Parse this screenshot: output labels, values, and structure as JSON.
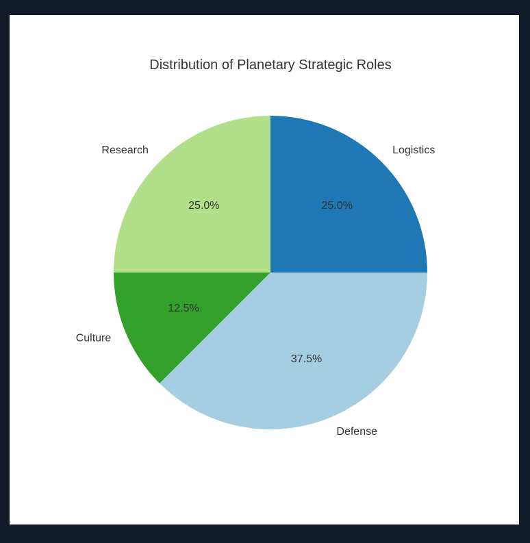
{
  "chart_data": {
    "type": "pie",
    "title": "Distribution of Planetary Strategic Roles",
    "start_angle_deg": 90,
    "direction": "counterclockwise",
    "slices": [
      {
        "label": "Research",
        "value": 25.0,
        "pct_label": "25.0%",
        "color": "#b2df8a"
      },
      {
        "label": "Culture",
        "value": 12.5,
        "pct_label": "12.5%",
        "color": "#33a02c"
      },
      {
        "label": "Defense",
        "value": 37.5,
        "pct_label": "37.5%",
        "color": "#a6cee3"
      },
      {
        "label": "Logistics",
        "value": 25.0,
        "pct_label": "25.0%",
        "color": "#1f78b4"
      }
    ]
  }
}
